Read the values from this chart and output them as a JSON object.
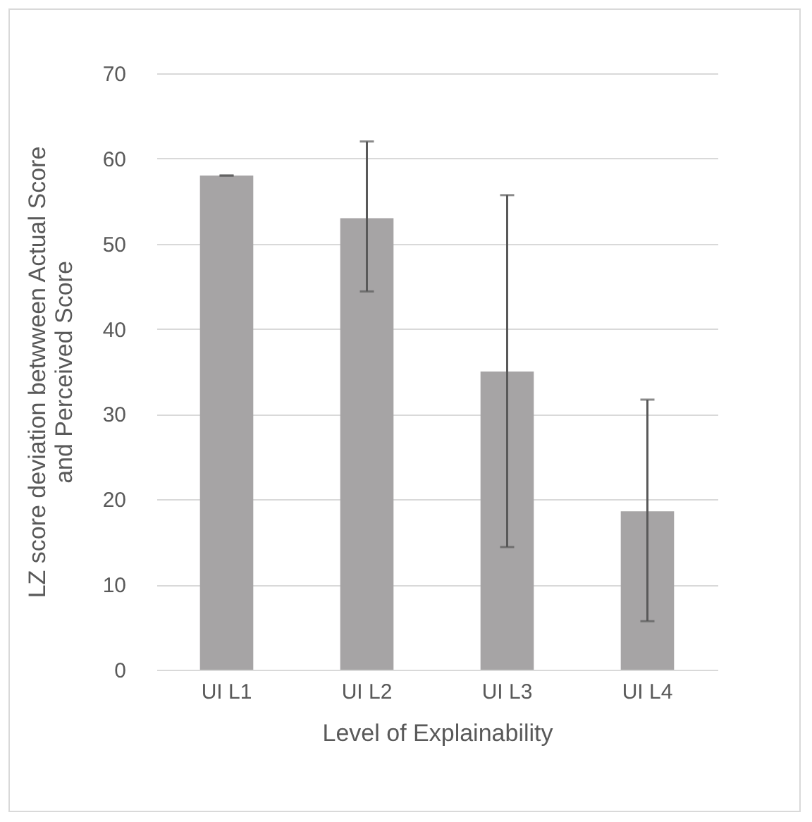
{
  "chart_data": {
    "type": "bar",
    "categories": [
      "UI L1",
      "UI L2",
      "UI L3",
      "UI L4"
    ],
    "values": [
      58,
      53,
      35,
      18.6
    ],
    "errors": [
      0,
      [
        44.4,
        62
      ],
      [
        14.4,
        55.7
      ],
      [
        5.7,
        31.7
      ]
    ],
    "color": "#a6a4a5",
    "xlabel": "Level of Explainability",
    "ylabel": "LZ score deviation betwween Actual Score\nand Perceived Score",
    "ylim": [
      0,
      70
    ],
    "yticks": [
      0,
      10,
      20,
      30,
      40,
      50,
      60,
      70
    ],
    "grid": "y"
  }
}
